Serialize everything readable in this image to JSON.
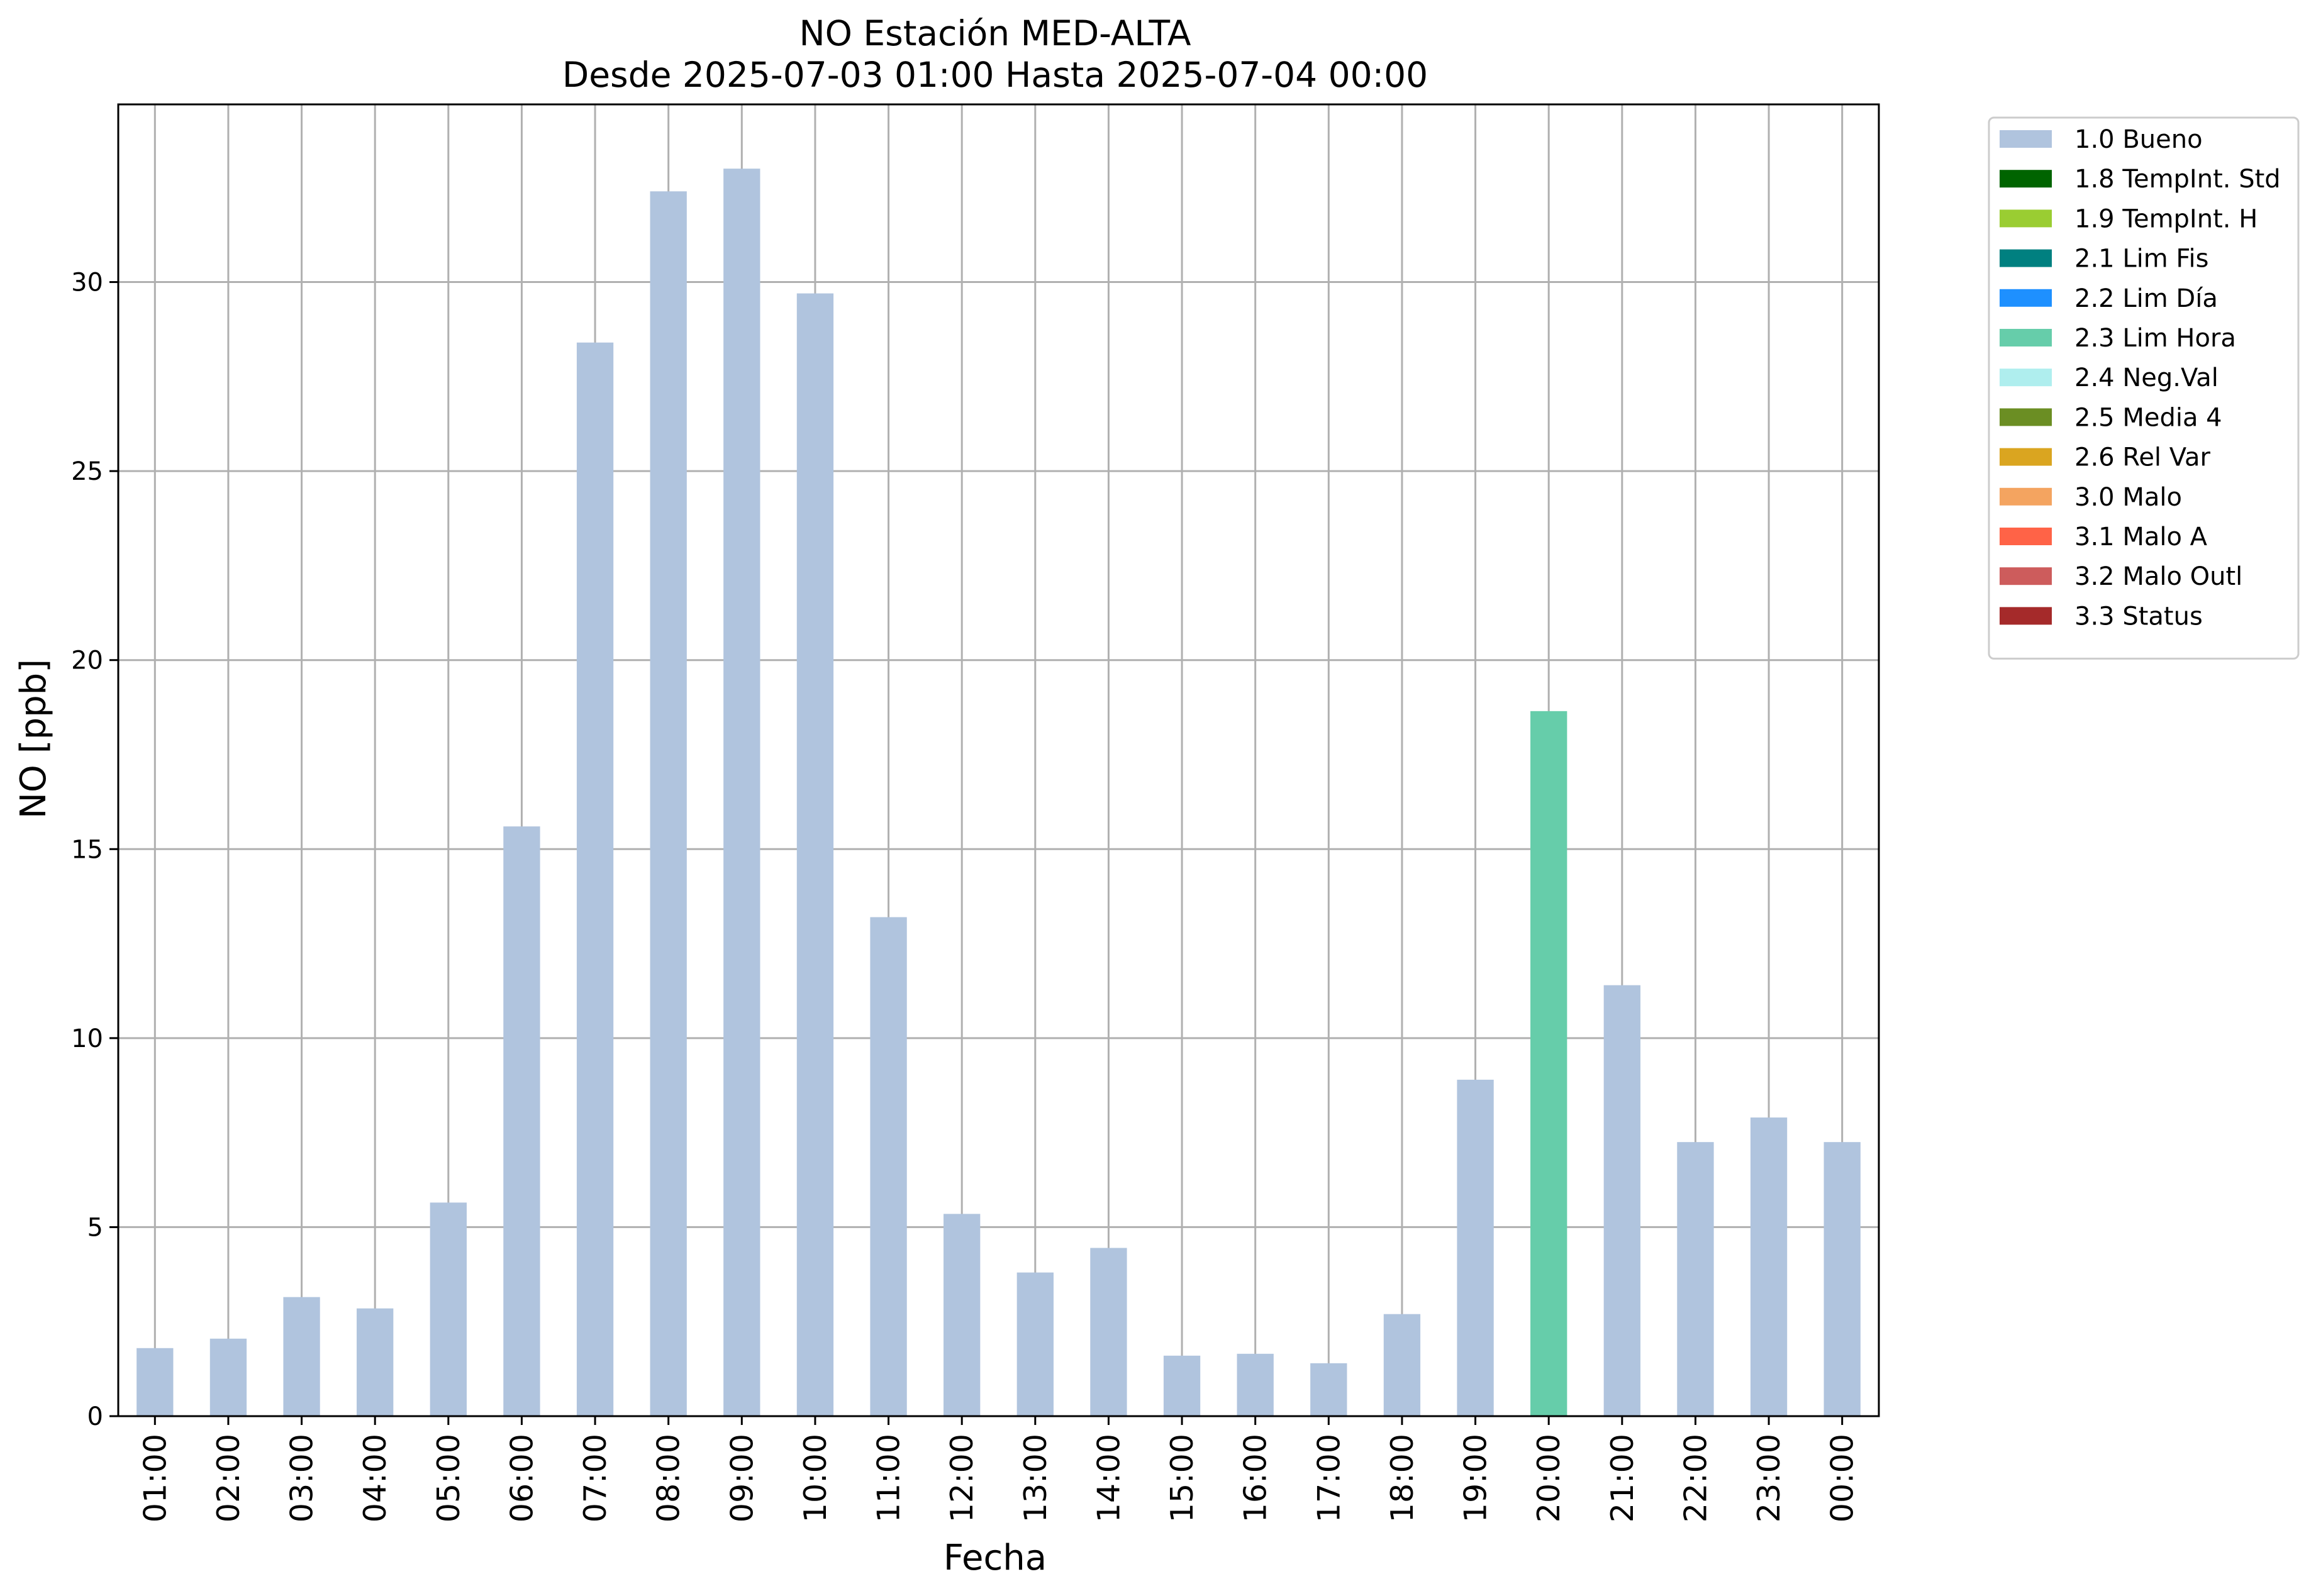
{
  "chart_data": {
    "type": "bar",
    "title": "NO Estación MED-ALTA",
    "subtitle": "Desde 2025-07-03 01:00 Hasta 2025-07-04 00:00",
    "xlabel": "Fecha",
    "ylabel": "NO [ppb]",
    "ylim": [
      0,
      34.7
    ],
    "yticks": [
      0,
      5,
      10,
      15,
      20,
      25,
      30
    ],
    "grid": true,
    "legend_position": "outside-right-top",
    "categories": [
      "01:00",
      "02:00",
      "03:00",
      "04:00",
      "05:00",
      "06:00",
      "07:00",
      "08:00",
      "09:00",
      "10:00",
      "11:00",
      "12:00",
      "13:00",
      "14:00",
      "15:00",
      "16:00",
      "17:00",
      "18:00",
      "19:00",
      "20:00",
      "21:00",
      "22:00",
      "23:00",
      "00:00"
    ],
    "values": [
      1.8,
      2.05,
      3.15,
      2.85,
      5.65,
      15.6,
      28.4,
      32.4,
      33.0,
      29.7,
      13.2,
      5.35,
      3.8,
      4.45,
      1.6,
      1.65,
      1.4,
      2.7,
      8.9,
      18.65,
      11.4,
      7.25,
      7.9,
      7.25
    ],
    "flags": [
      "1.0 Bueno",
      "1.0 Bueno",
      "1.0 Bueno",
      "1.0 Bueno",
      "1.0 Bueno",
      "1.0 Bueno",
      "1.0 Bueno",
      "1.0 Bueno",
      "1.0 Bueno",
      "1.0 Bueno",
      "1.0 Bueno",
      "1.0 Bueno",
      "1.0 Bueno",
      "1.0 Bueno",
      "1.0 Bueno",
      "1.0 Bueno",
      "1.0 Bueno",
      "1.0 Bueno",
      "1.0 Bueno",
      "2.3 Lim Hora",
      "1.0 Bueno",
      "1.0 Bueno",
      "1.0 Bueno",
      "1.0 Bueno"
    ],
    "legend": [
      {
        "label": "1.0 Bueno",
        "color": "#b0c4de"
      },
      {
        "label": "1.8 TempInt. Std",
        "color": "#006400"
      },
      {
        "label": "1.9 TempInt. H",
        "color": "#9acd32"
      },
      {
        "label": "2.1 Lim Fis",
        "color": "#008080"
      },
      {
        "label": "2.2 Lim Día",
        "color": "#1e90ff"
      },
      {
        "label": "2.3 Lim Hora",
        "color": "#66cdaa"
      },
      {
        "label": "2.4 Neg.Val",
        "color": "#afeeee"
      },
      {
        "label": "2.5 Media 4",
        "color": "#6b8e23"
      },
      {
        "label": "2.6 Rel Var",
        "color": "#daa520"
      },
      {
        "label": "3.0 Malo",
        "color": "#f4a460"
      },
      {
        "label": "3.1 Malo A",
        "color": "#ff6347"
      },
      {
        "label": "3.2 Malo Outl",
        "color": "#cd5c5c"
      },
      {
        "label": "3.3 Status",
        "color": "#a52a2a"
      }
    ]
  }
}
